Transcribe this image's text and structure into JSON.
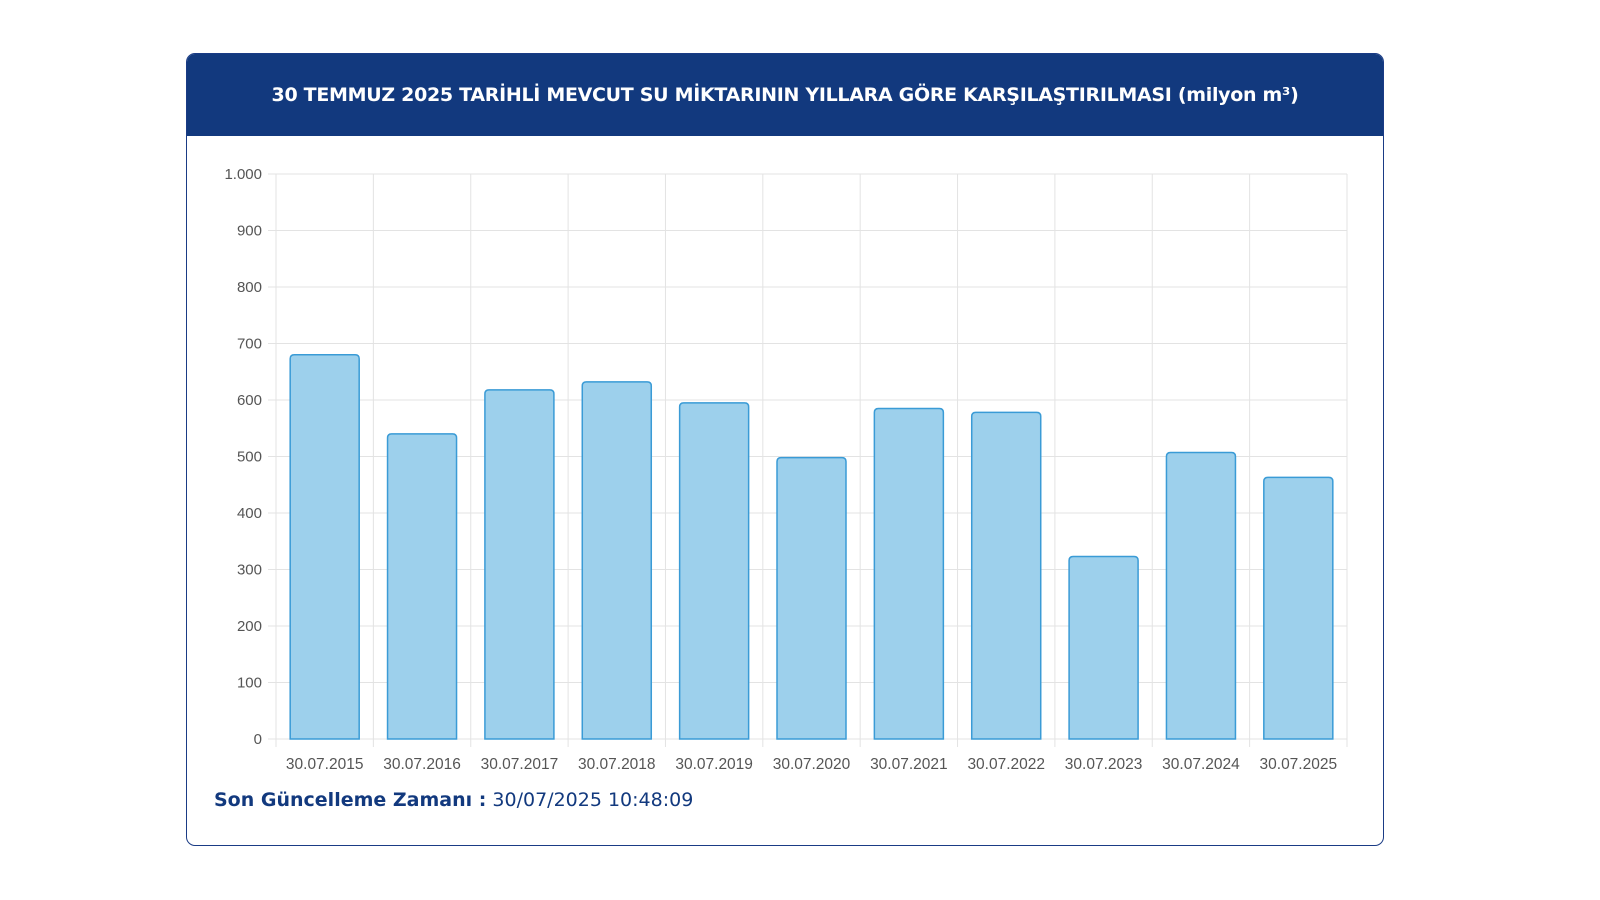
{
  "header": {
    "title": "30 TEMMUZ 2025 TARİHLİ MEVCUT SU MİKTARININ YILLARA GÖRE KARŞILAŞTIRILMASI (milyon m³)"
  },
  "footer": {
    "label": "Son Güncelleme Zamanı :",
    "value": "30/07/2025 10:48:09"
  },
  "colors": {
    "header_bg": "#12397e",
    "bar_fill": "#9dd0ec",
    "bar_stroke": "#3a9bd6",
    "grid": "#e3e3e3"
  },
  "chart_data": {
    "type": "bar",
    "title": "30 TEMMUZ 2025 TARİHLİ MEVCUT SU MİKTARININ YILLARA GÖRE KARŞILAŞTIRILMASI (milyon m³)",
    "categories": [
      "30.07.2015",
      "30.07.2016",
      "30.07.2017",
      "30.07.2018",
      "30.07.2019",
      "30.07.2020",
      "30.07.2021",
      "30.07.2022",
      "30.07.2023",
      "30.07.2024",
      "30.07.2025"
    ],
    "values": [
      680,
      540,
      618,
      632,
      595,
      498,
      585,
      578,
      323,
      507,
      463
    ],
    "ylim": [
      0,
      1000
    ],
    "yticks": [
      0,
      100,
      200,
      300,
      400,
      500,
      600,
      700,
      800,
      900,
      1000
    ],
    "ytick_labels": [
      "0",
      "100",
      "200",
      "300",
      "400",
      "500",
      "600",
      "700",
      "800",
      "900",
      "1.000"
    ],
    "xlabel": "",
    "ylabel": "",
    "grid": true,
    "legend": "none"
  }
}
